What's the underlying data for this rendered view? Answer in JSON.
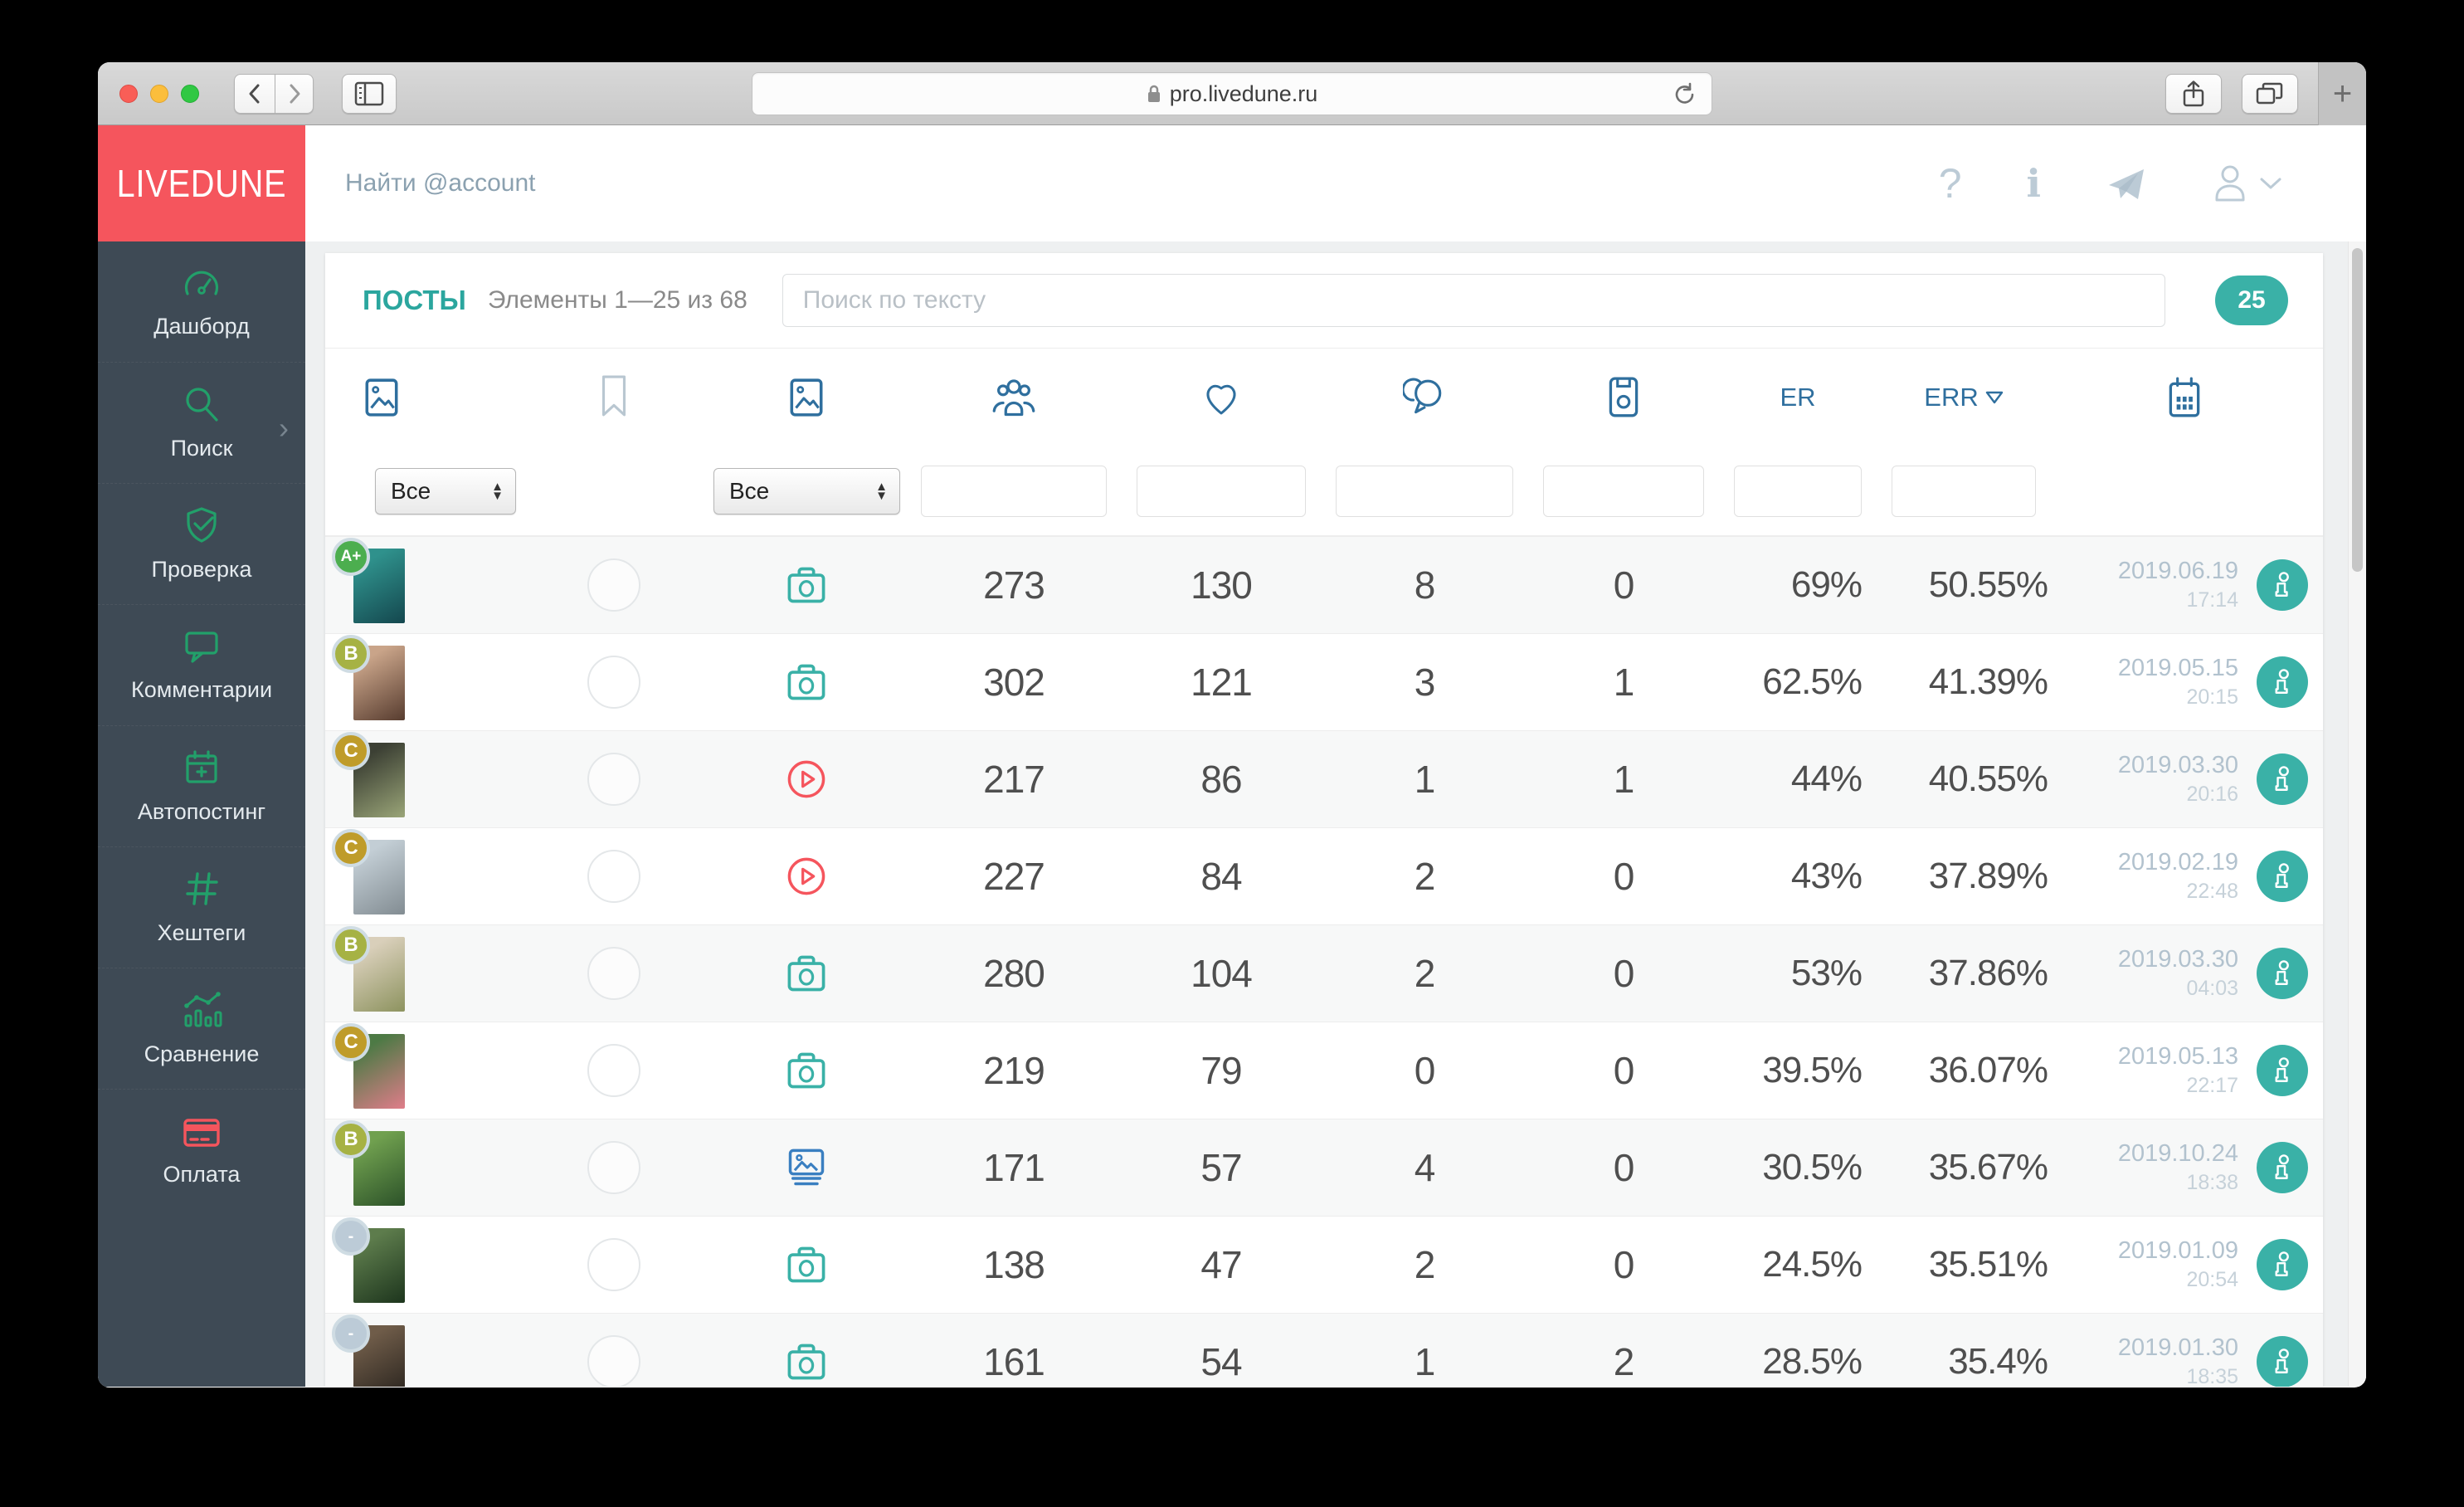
{
  "browser": {
    "url": "pro.livedune.ru",
    "new_tab_glyph": "+"
  },
  "brand": {
    "logo": "LIVEDUNE"
  },
  "topbar": {
    "account_search_placeholder": "Найти @account",
    "help_glyph": "?",
    "info_glyph": "i"
  },
  "sidebar": {
    "items": [
      {
        "label": "Дашборд",
        "icon": "gauge-icon"
      },
      {
        "label": "Поиск",
        "icon": "search-icon",
        "chevron": "›"
      },
      {
        "label": "Проверка",
        "icon": "shield-check-icon"
      },
      {
        "label": "Комментарии",
        "icon": "comment-icon"
      },
      {
        "label": "Автопостинг",
        "icon": "calendar-plus-icon"
      },
      {
        "label": "Хештеги",
        "icon": "hashtag-icon"
      },
      {
        "label": "Сравнение",
        "icon": "bar-line-chart-icon"
      },
      {
        "label": "Оплата",
        "icon": "credit-card-icon"
      }
    ]
  },
  "posts": {
    "title": "ПОСТЫ",
    "items_range": "Элементы 1—25 из 68",
    "text_search_placeholder": "Поиск по тексту",
    "per_page_badge": "25"
  },
  "table": {
    "header": {
      "er_label": "ER",
      "err_label": "ERR",
      "column_icons": [
        "post-image",
        "bookmark",
        "media-type",
        "audience",
        "likes",
        "comments",
        "saves",
        "calendar"
      ]
    },
    "filters": {
      "type_select_value": "Все",
      "media_select_value": "Все"
    },
    "rows": [
      {
        "grade": "A+",
        "media": "photo",
        "audience": "273",
        "likes": "130",
        "comments": "8",
        "saves": "0",
        "er": "69%",
        "err": "50.55%",
        "date": "2019.06.19",
        "time": "17:14",
        "thumb": [
          "#2f918c",
          "#14474e"
        ]
      },
      {
        "grade": "B",
        "media": "photo",
        "audience": "302",
        "likes": "121",
        "comments": "3",
        "saves": "1",
        "er": "62.5%",
        "err": "41.39%",
        "date": "2019.05.15",
        "time": "20:15",
        "thumb": [
          "#c9a489",
          "#573c2f"
        ]
      },
      {
        "grade": "C",
        "media": "video",
        "audience": "217",
        "likes": "86",
        "comments": "1",
        "saves": "1",
        "er": "44%",
        "err": "40.55%",
        "date": "2019.03.30",
        "time": "20:16",
        "thumb": [
          "#3c4034",
          "#9aa578"
        ]
      },
      {
        "grade": "C",
        "media": "video",
        "audience": "227",
        "likes": "84",
        "comments": "2",
        "saves": "0",
        "er": "43%",
        "err": "37.89%",
        "date": "2019.02.19",
        "time": "22:48",
        "thumb": [
          "#c3ced5",
          "#828c92"
        ]
      },
      {
        "grade": "B",
        "media": "photo",
        "audience": "280",
        "likes": "104",
        "comments": "2",
        "saves": "0",
        "er": "53%",
        "err": "37.86%",
        "date": "2019.03.30",
        "time": "04:03",
        "thumb": [
          "#d9cfba",
          "#8d935f"
        ]
      },
      {
        "grade": "C",
        "media": "photo",
        "audience": "219",
        "likes": "79",
        "comments": "0",
        "saves": "0",
        "er": "39.5%",
        "err": "36.07%",
        "date": "2019.05.13",
        "time": "22:17",
        "thumb": [
          "#4d7a45",
          "#e07d8a"
        ]
      },
      {
        "grade": "B",
        "media": "carousel",
        "audience": "171",
        "likes": "57",
        "comments": "4",
        "saves": "0",
        "er": "30.5%",
        "err": "35.67%",
        "date": "2019.10.24",
        "time": "18:38",
        "thumb": [
          "#70a04f",
          "#2c5229"
        ]
      },
      {
        "grade": "-",
        "media": "photo",
        "audience": "138",
        "likes": "47",
        "comments": "2",
        "saves": "0",
        "er": "24.5%",
        "err": "35.51%",
        "date": "2019.01.09",
        "time": "20:54",
        "thumb": [
          "#5d7c4c",
          "#1d351d"
        ]
      },
      {
        "grade": "-",
        "media": "photo",
        "audience": "161",
        "likes": "54",
        "comments": "1",
        "saves": "2",
        "er": "28.5%",
        "err": "35.4%",
        "date": "2019.01.30",
        "time": "18:35",
        "thumb": [
          "#6f5c49",
          "#26211c"
        ]
      }
    ]
  },
  "colors": {
    "accent_teal": "#3ab1a7",
    "brand_red": "#f5555d",
    "sidebar_bg": "#3e4a55",
    "sidebar_icon_green": "#22a06a",
    "header_icon_blue": "#2f6f9e",
    "carousel_icon_blue": "#3a7fc1",
    "video_icon_red": "#f5555d",
    "grade_a": "#4cae4f",
    "grade_b": "#a6b244",
    "grade_c": "#bf9c2a",
    "grade_none": "#bccbd7"
  }
}
